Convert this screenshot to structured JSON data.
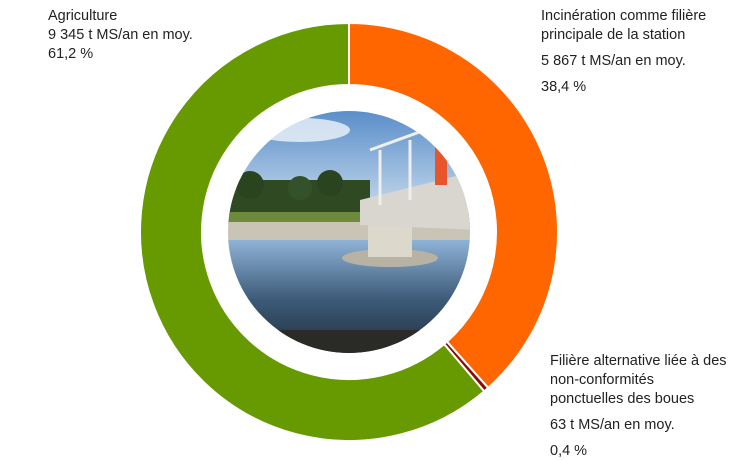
{
  "chart_data": {
    "type": "donut",
    "categories": [
      "Incinération comme  filière principale de la station",
      "Filière alternative liée à des non-conformités ponctuelles des boues",
      "Agriculture"
    ],
    "details": [
      "5 867 t MS/an en moy.",
      "63 t MS/an en moy.",
      "9 345 t MS/an en moy."
    ],
    "values": [
      38.4,
      0.4,
      61.2
    ],
    "value_labels": [
      "38,4 %",
      "0,4 %",
      "61,2 %"
    ],
    "colors": [
      "#ff6600",
      "#8b0a0a",
      "#669a00"
    ],
    "legend_colors": [
      "#ff6600",
      "#8b0a0a",
      "#4caf50"
    ]
  }
}
